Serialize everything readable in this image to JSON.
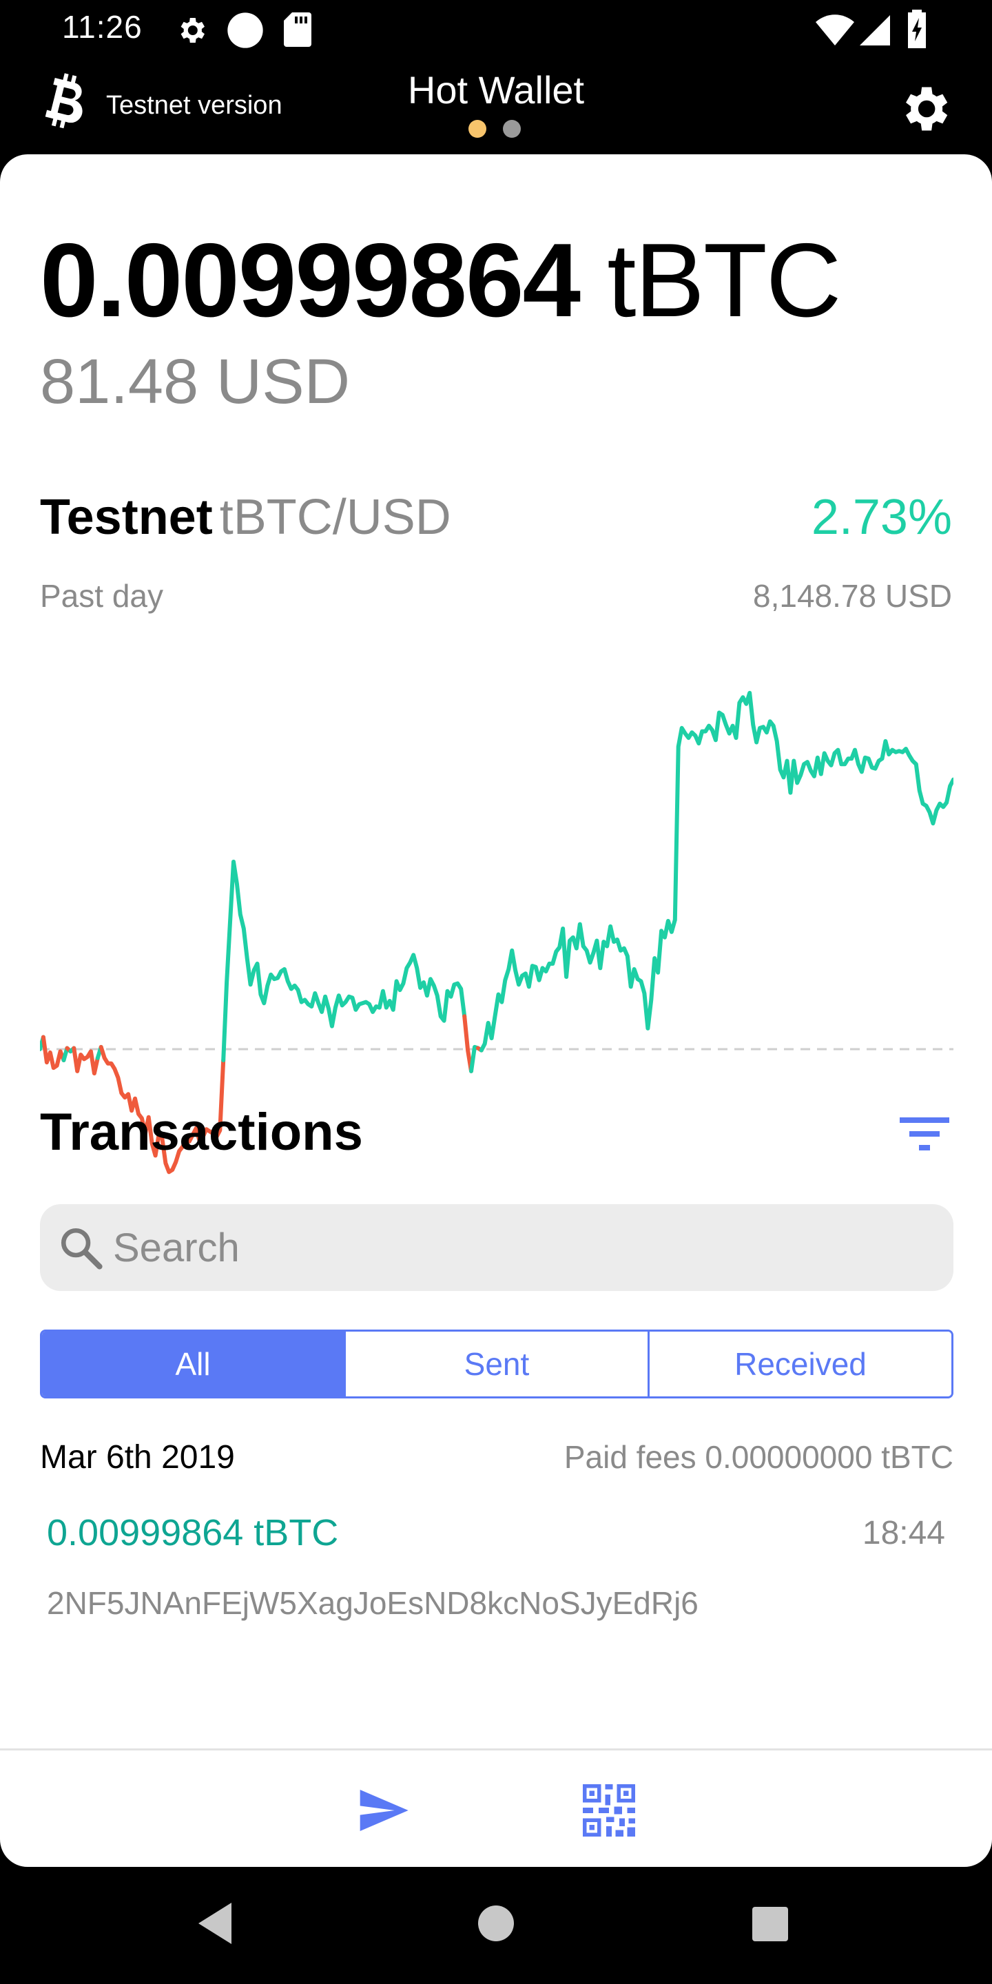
{
  "status_bar": {
    "time": "11:26",
    "icons": [
      "gear-icon",
      "circle-icon",
      "sd-card-icon",
      "wifi-icon",
      "cell-signal-icon",
      "battery-charging-icon"
    ]
  },
  "header": {
    "logo_icon": "bitcoin-icon",
    "testnet_label": "Testnet version",
    "title": "Hot Wallet",
    "page_indicator": {
      "count": 2,
      "active_index": 0,
      "active_color": "#F7C46C",
      "inactive_color": "#9A9A9A"
    },
    "settings_icon": "gear-icon"
  },
  "balance": {
    "amount": "0.00999864",
    "unit": "tBTC",
    "fiat": "81.48 USD"
  },
  "market": {
    "network": "Testnet",
    "pair": "tBTC/USD",
    "change": "2.73%",
    "period": "Past day",
    "price": "8,148.78 USD"
  },
  "colors": {
    "accent": "#5A79F5",
    "positive": "#1ECFA5",
    "negative": "#EF5A3C",
    "tx_amount": "#0EA592",
    "secondary_text": "#8A8A8A"
  },
  "chart_data": {
    "type": "line",
    "title": "",
    "xlabel": "",
    "ylabel": "",
    "baseline": 0,
    "baseline_style": "dashed",
    "ylim": [
      -12,
      34
    ],
    "positive_color": "#1ECFA5",
    "negative_color": "#EF5A3C",
    "series": [
      {
        "values": [
          0.0,
          1.1,
          -1.2,
          -0.3,
          -1.7,
          -1.5,
          -0.2,
          -1.0,
          0.1,
          -0.2,
          0.1,
          -2.0,
          -0.5,
          -0.9,
          -0.7,
          -0.2,
          -2.2,
          -0.8,
          0.2,
          -0.8,
          -1.3,
          -1.3,
          -1.8,
          -2.6,
          -4.0,
          -4.4,
          -4.1,
          -5.6,
          -4.5,
          -5.9,
          -6.3,
          -7.7,
          -6.2,
          -8.6,
          -9.7,
          -7.8,
          -8.2,
          -10.4,
          -11.2,
          -11.0,
          -10.3,
          -9.3,
          -8.9,
          -8.3,
          -8.4,
          -7.8,
          -7.2,
          -8.4,
          -8.0,
          -7.3,
          -7.5,
          -7.7,
          -8.0,
          -7.4,
          -1.0,
          6.1,
          11.6,
          17.1,
          15.1,
          12.3,
          11.0,
          8.3,
          5.9,
          7.2,
          7.8,
          5.0,
          4.2,
          5.8,
          6.8,
          6.4,
          6.5,
          7.1,
          7.3,
          6.2,
          5.5,
          5.8,
          5.4,
          4.3,
          4.5,
          4.1,
          3.9,
          5.1,
          4.2,
          3.4,
          4.8,
          3.7,
          2.1,
          3.8,
          4.9,
          4.0,
          4.3,
          4.8,
          4.7,
          3.6,
          4.1,
          4.2,
          4.3,
          4.1,
          3.4,
          3.9,
          3.8,
          5.3,
          3.8,
          4.4,
          3.6,
          6.2,
          5.4,
          6.0,
          7.4,
          7.9,
          8.6,
          7.4,
          5.6,
          6.1,
          4.9,
          6.4,
          5.8,
          4.9,
          3.0,
          2.6,
          5.3,
          4.8,
          5.9,
          6.0,
          5.5,
          3.0,
          -0.1,
          -2.0,
          0.2,
          0.1,
          -0.1,
          0.5,
          2.4,
          1.0,
          3.0,
          5.0,
          4.3,
          6.3,
          7.3,
          9.0,
          7.2,
          5.9,
          6.7,
          6.9,
          5.7,
          7.6,
          7.5,
          6.3,
          7.4,
          7.1,
          7.8,
          7.8,
          8.9,
          9.3,
          11.0,
          6.6,
          9.9,
          10.2,
          9.2,
          11.4,
          9.4,
          9.0,
          7.9,
          8.8,
          9.9,
          7.4,
          9.8,
          9.4,
          11.2,
          9.8,
          10.0,
          9.0,
          9.2,
          8.5,
          5.7,
          7.3,
          6.4,
          6.2,
          5.1,
          1.9,
          4.5,
          8.3,
          7.0,
          10.8,
          10.2,
          11.7,
          10.7,
          11.8,
          27.6,
          29.3,
          28.8,
          28.4,
          28.9,
          28.6,
          27.9,
          29.0,
          29.0,
          29.5,
          29.1,
          28.2,
          30.7,
          30.5,
          29.6,
          28.8,
          29.5,
          28.4,
          31.6,
          32.1,
          31.5,
          32.5,
          29.6,
          28.0,
          29.3,
          29.4,
          28.9,
          29.9,
          29.5,
          28.1,
          25.5,
          24.8,
          26.3,
          23.4,
          26.3,
          24.3,
          25.0,
          26.0,
          26.2,
          25.4,
          24.9,
          26.6,
          25.1,
          27.0,
          26.3,
          25.9,
          27.0,
          27.3,
          26.0,
          26.0,
          26.5,
          26.5,
          27.3,
          26.0,
          25.3,
          26.6,
          26.5,
          25.7,
          25.6,
          26.3,
          26.5,
          28.1,
          26.9,
          27.3,
          27.1,
          27.2,
          27.1,
          27.4,
          26.8,
          26.3,
          26.0,
          23.6,
          22.4,
          22.2,
          21.6,
          20.6,
          21.8,
          22.4,
          22.1,
          22.5,
          24.0,
          24.6
        ]
      }
    ]
  },
  "transactions": {
    "title": "Transactions",
    "filter_icon": "filter-icon",
    "search": {
      "icon": "search-icon",
      "placeholder": "Search",
      "value": ""
    },
    "tabs": [
      {
        "label": "All",
        "selected": true
      },
      {
        "label": "Sent",
        "selected": false
      },
      {
        "label": "Received",
        "selected": false
      }
    ],
    "groups": [
      {
        "date": "Mar 6th 2019",
        "fees": "Paid fees 0.00000000 tBTC",
        "items": [
          {
            "amount": "0.00999864 tBTC",
            "time": "18:44",
            "address": "2NF5JNAnFEjW5XagJoEsND8kcNoSJyEdRj6"
          }
        ]
      }
    ]
  },
  "bottom_bar": {
    "send_icon": "send-icon",
    "receive_icon": "qr-code-icon"
  },
  "nav_bar": {
    "icons": [
      "back-icon",
      "home-icon",
      "recents-icon"
    ]
  }
}
